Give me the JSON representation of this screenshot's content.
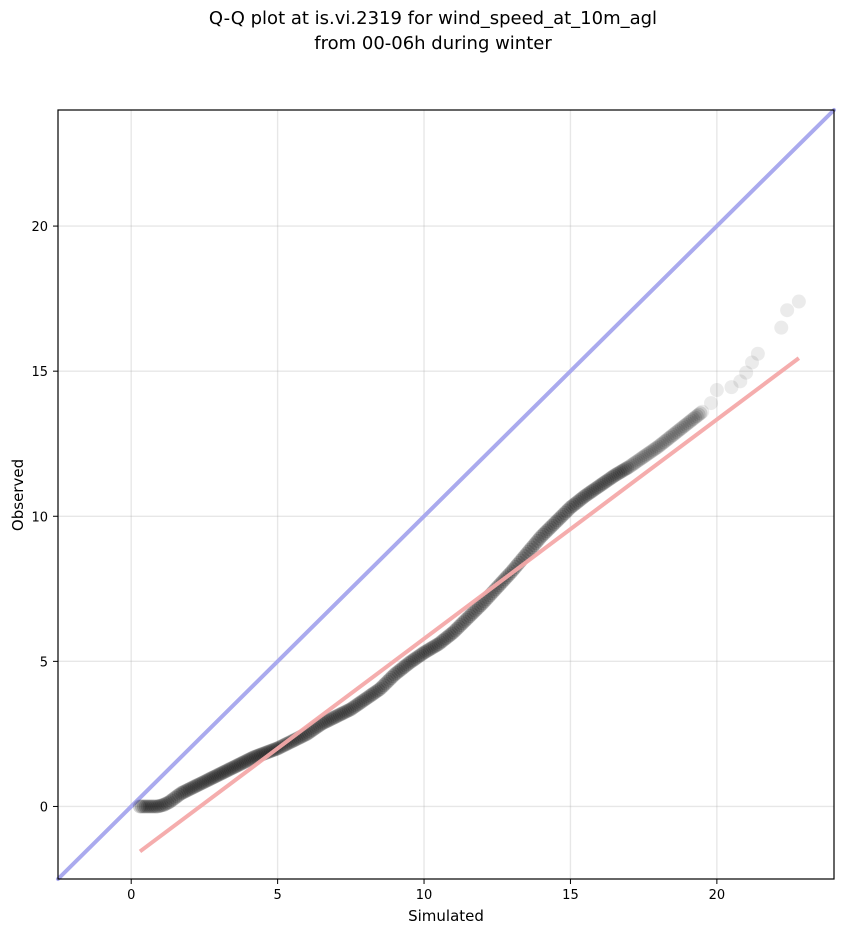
{
  "chart_data": {
    "type": "scatter",
    "title_lines": [
      "Q-Q plot at is.vi.2319 for wind_speed_at_10m_agl",
      "from 00-06h during winter"
    ],
    "xlabel": "Simulated",
    "ylabel": "Observed",
    "xlim": [
      -2.5,
      24
    ],
    "ylim": [
      -2.5,
      24
    ],
    "xticks": [
      0,
      5,
      10,
      15,
      20
    ],
    "yticks": [
      0,
      5,
      10,
      15,
      20
    ],
    "grid": true,
    "colors": {
      "points": "#000000",
      "identity_line": "#aaaaee",
      "fit_line": "#f4a9a9"
    },
    "identity_line": {
      "x": [
        -2.5,
        24
      ],
      "y": [
        -2.5,
        24
      ]
    },
    "fit_line": {
      "x": [
        0.3,
        22.8
      ],
      "y": [
        -1.55,
        15.45
      ]
    },
    "quantiles": {
      "x": [
        0.3,
        0.5,
        0.7,
        0.9,
        1.1,
        1.3,
        1.5,
        1.7,
        2.0,
        2.3,
        2.6,
        3.0,
        3.4,
        3.8,
        4.2,
        4.6,
        5.0,
        5.5,
        6.0,
        6.5,
        7.0,
        7.5,
        8.0,
        8.5,
        9.0,
        9.5,
        10.0,
        10.5,
        11.0,
        11.5,
        12.0,
        12.5,
        13.0,
        13.5,
        14.0,
        14.5,
        15.0,
        15.5,
        16.0,
        16.5,
        17.0,
        17.5,
        18.0,
        18.5,
        19.0,
        19.5,
        19.8,
        20.0,
        20.5,
        20.8,
        21.0,
        21.2,
        21.4,
        22.2,
        22.4,
        22.8
      ],
      "y": [
        0.0,
        0.0,
        0.0,
        0.0,
        0.05,
        0.15,
        0.3,
        0.45,
        0.6,
        0.75,
        0.9,
        1.1,
        1.3,
        1.5,
        1.7,
        1.85,
        2.0,
        2.25,
        2.5,
        2.85,
        3.1,
        3.35,
        3.7,
        4.05,
        4.55,
        4.95,
        5.3,
        5.6,
        6.0,
        6.5,
        7.0,
        7.55,
        8.1,
        8.7,
        9.3,
        9.8,
        10.3,
        10.7,
        11.05,
        11.4,
        11.7,
        12.05,
        12.4,
        12.8,
        13.2,
        13.6,
        13.9,
        14.35,
        14.45,
        14.65,
        14.95,
        15.3,
        15.6,
        16.5,
        17.1,
        17.4
      ]
    }
  }
}
